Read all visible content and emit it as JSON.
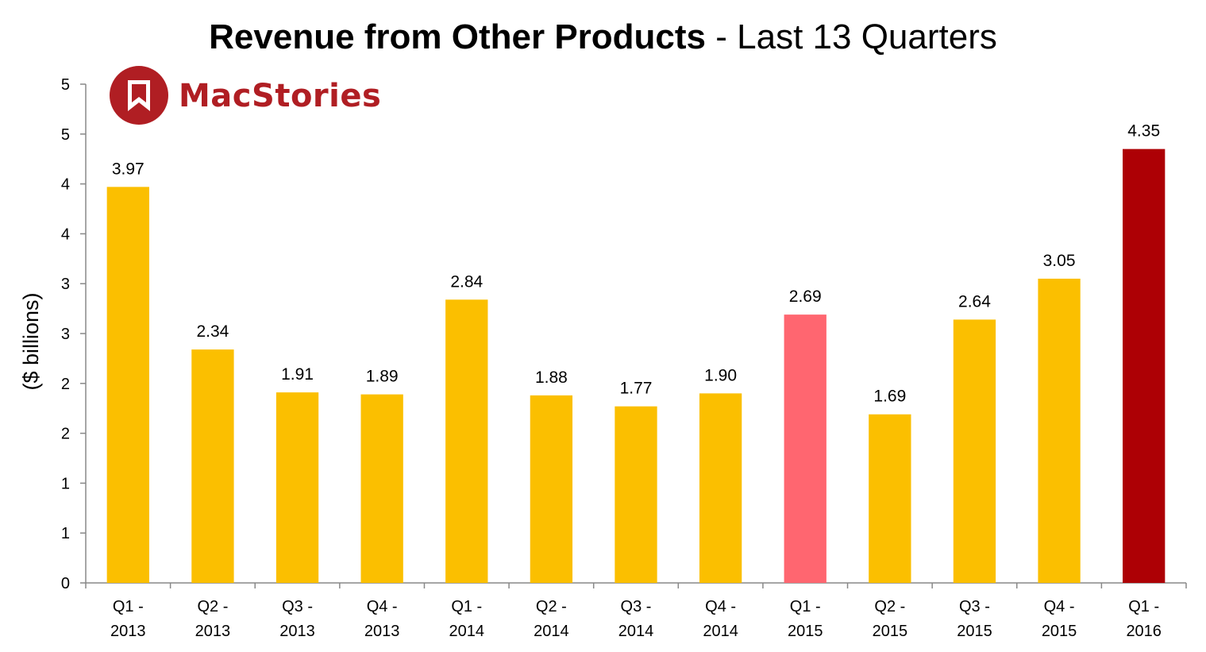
{
  "title": {
    "bold": "Revenue from Other Products",
    "rest": " - Last 13 Quarters"
  },
  "logo": {
    "text": "MacStories",
    "icon": "bookmark-icon",
    "color": "#b01e23"
  },
  "chart_data": {
    "type": "bar",
    "title": "Revenue from Other Products - Last 13 Quarters",
    "xlabel": "",
    "ylabel": "($ billions)",
    "ylim": [
      0,
      5
    ],
    "yticks": [
      0,
      0.5,
      1,
      1.5,
      2,
      2.5,
      3,
      3.5,
      4,
      4.5,
      5
    ],
    "ytick_labels": [
      "0",
      "1",
      "1",
      "2",
      "2",
      "3",
      "3",
      "4",
      "4",
      "5",
      "5"
    ],
    "categories": [
      [
        "Q1 -",
        "2013"
      ],
      [
        "Q2 -",
        "2013"
      ],
      [
        "Q3 -",
        "2013"
      ],
      [
        "Q4 -",
        "2013"
      ],
      [
        "Q1 -",
        "2014"
      ],
      [
        "Q2 -",
        "2014"
      ],
      [
        "Q3 -",
        "2014"
      ],
      [
        "Q4 -",
        "2014"
      ],
      [
        "Q1 -",
        "2015"
      ],
      [
        "Q2 -",
        "2015"
      ],
      [
        "Q3 -",
        "2015"
      ],
      [
        "Q4 -",
        "2015"
      ],
      [
        "Q1 -",
        "2016"
      ]
    ],
    "values": [
      3.97,
      2.34,
      1.91,
      1.89,
      2.84,
      1.88,
      1.77,
      1.9,
      2.69,
      1.69,
      2.64,
      3.05,
      4.35
    ],
    "data_labels": [
      "3.97",
      "2.34",
      "1.91",
      "1.89",
      "2.84",
      "1.88",
      "1.77",
      "1.90",
      "2.69",
      "1.69",
      "2.64",
      "3.05",
      "4.35"
    ],
    "colors": [
      "#fbbf00",
      "#fbbf00",
      "#fbbf00",
      "#fbbf00",
      "#fbbf00",
      "#fbbf00",
      "#fbbf00",
      "#fbbf00",
      "#ff6670",
      "#fbbf00",
      "#fbbf00",
      "#fbbf00",
      "#ad0005"
    ],
    "grid": false,
    "legend": "none"
  }
}
